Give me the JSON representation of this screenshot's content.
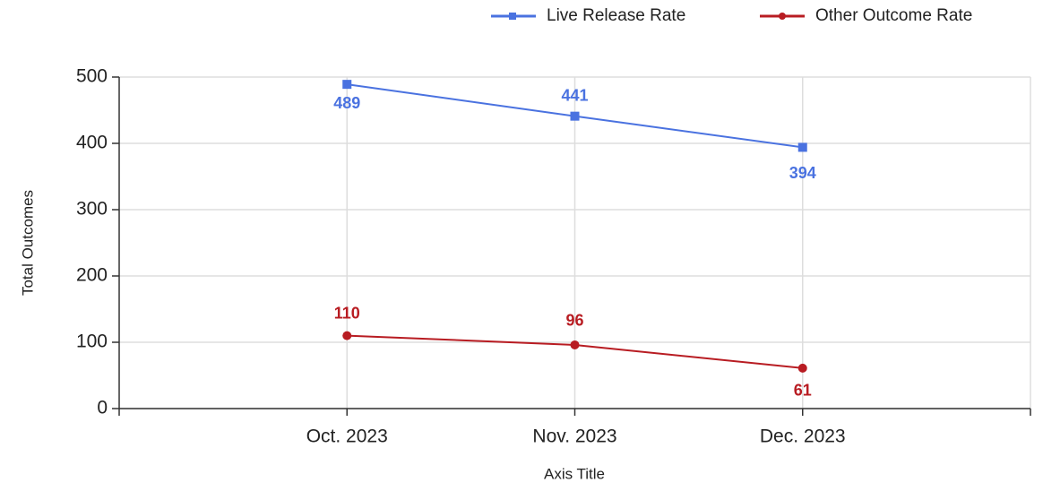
{
  "chart_data": {
    "type": "line",
    "categories": [
      "Oct. 2023",
      "Nov. 2023",
      "Dec. 2023"
    ],
    "series": [
      {
        "name": "Live Release Rate",
        "color": "#4a72e0",
        "values": [
          489,
          441,
          394
        ]
      },
      {
        "name": "Other Outcome Rate",
        "color": "#b81c22",
        "values": [
          110,
          96,
          61
        ]
      }
    ],
    "x_label": "Axis Title",
    "y_label": "Total Outcomes",
    "ylim": [
      0,
      500
    ],
    "yticks": [
      0,
      100,
      200,
      300,
      400,
      500
    ],
    "grid": true,
    "legend": "top-right"
  }
}
